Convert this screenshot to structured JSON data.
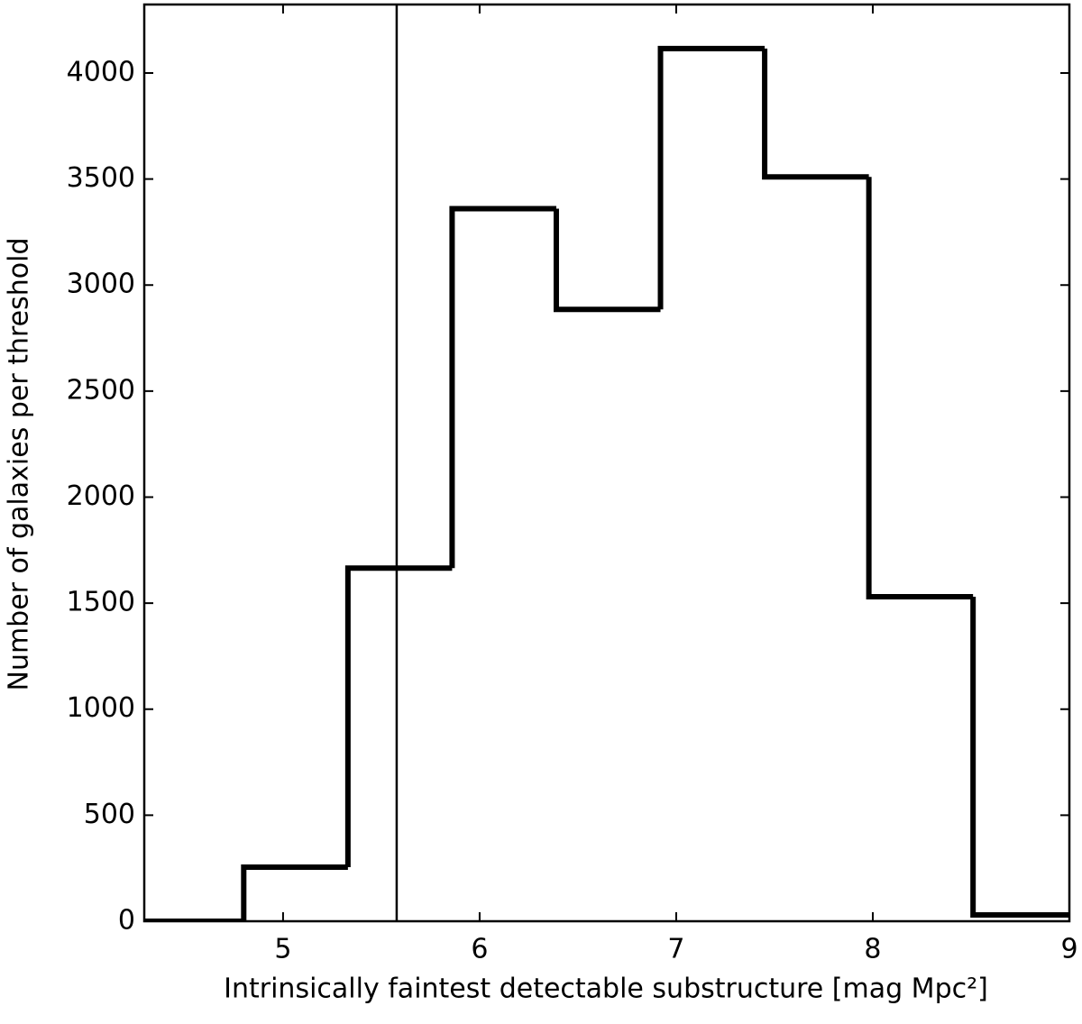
{
  "chart_data": {
    "type": "histogram",
    "xlabel": "Intrinsically faintest detectable substructure [mag Mpc²]",
    "ylabel": "Number of galaxies per threshold",
    "bins": [
      4.27,
      4.8,
      5.33,
      5.86,
      6.39,
      6.92,
      7.45,
      7.98,
      8.51,
      9.04
    ],
    "values": [
      0,
      255,
      1665,
      3360,
      2885,
      4115,
      3510,
      1530,
      30
    ],
    "color": "#000000",
    "vline": 5.578,
    "xlim": [
      4.294,
      9
    ],
    "xticks": [
      5,
      6,
      7,
      8,
      9
    ],
    "ylim": [
      0,
      4323
    ],
    "yticks": [
      0,
      500,
      1000,
      1500,
      2000,
      2500,
      3000,
      3500,
      4000
    ]
  }
}
